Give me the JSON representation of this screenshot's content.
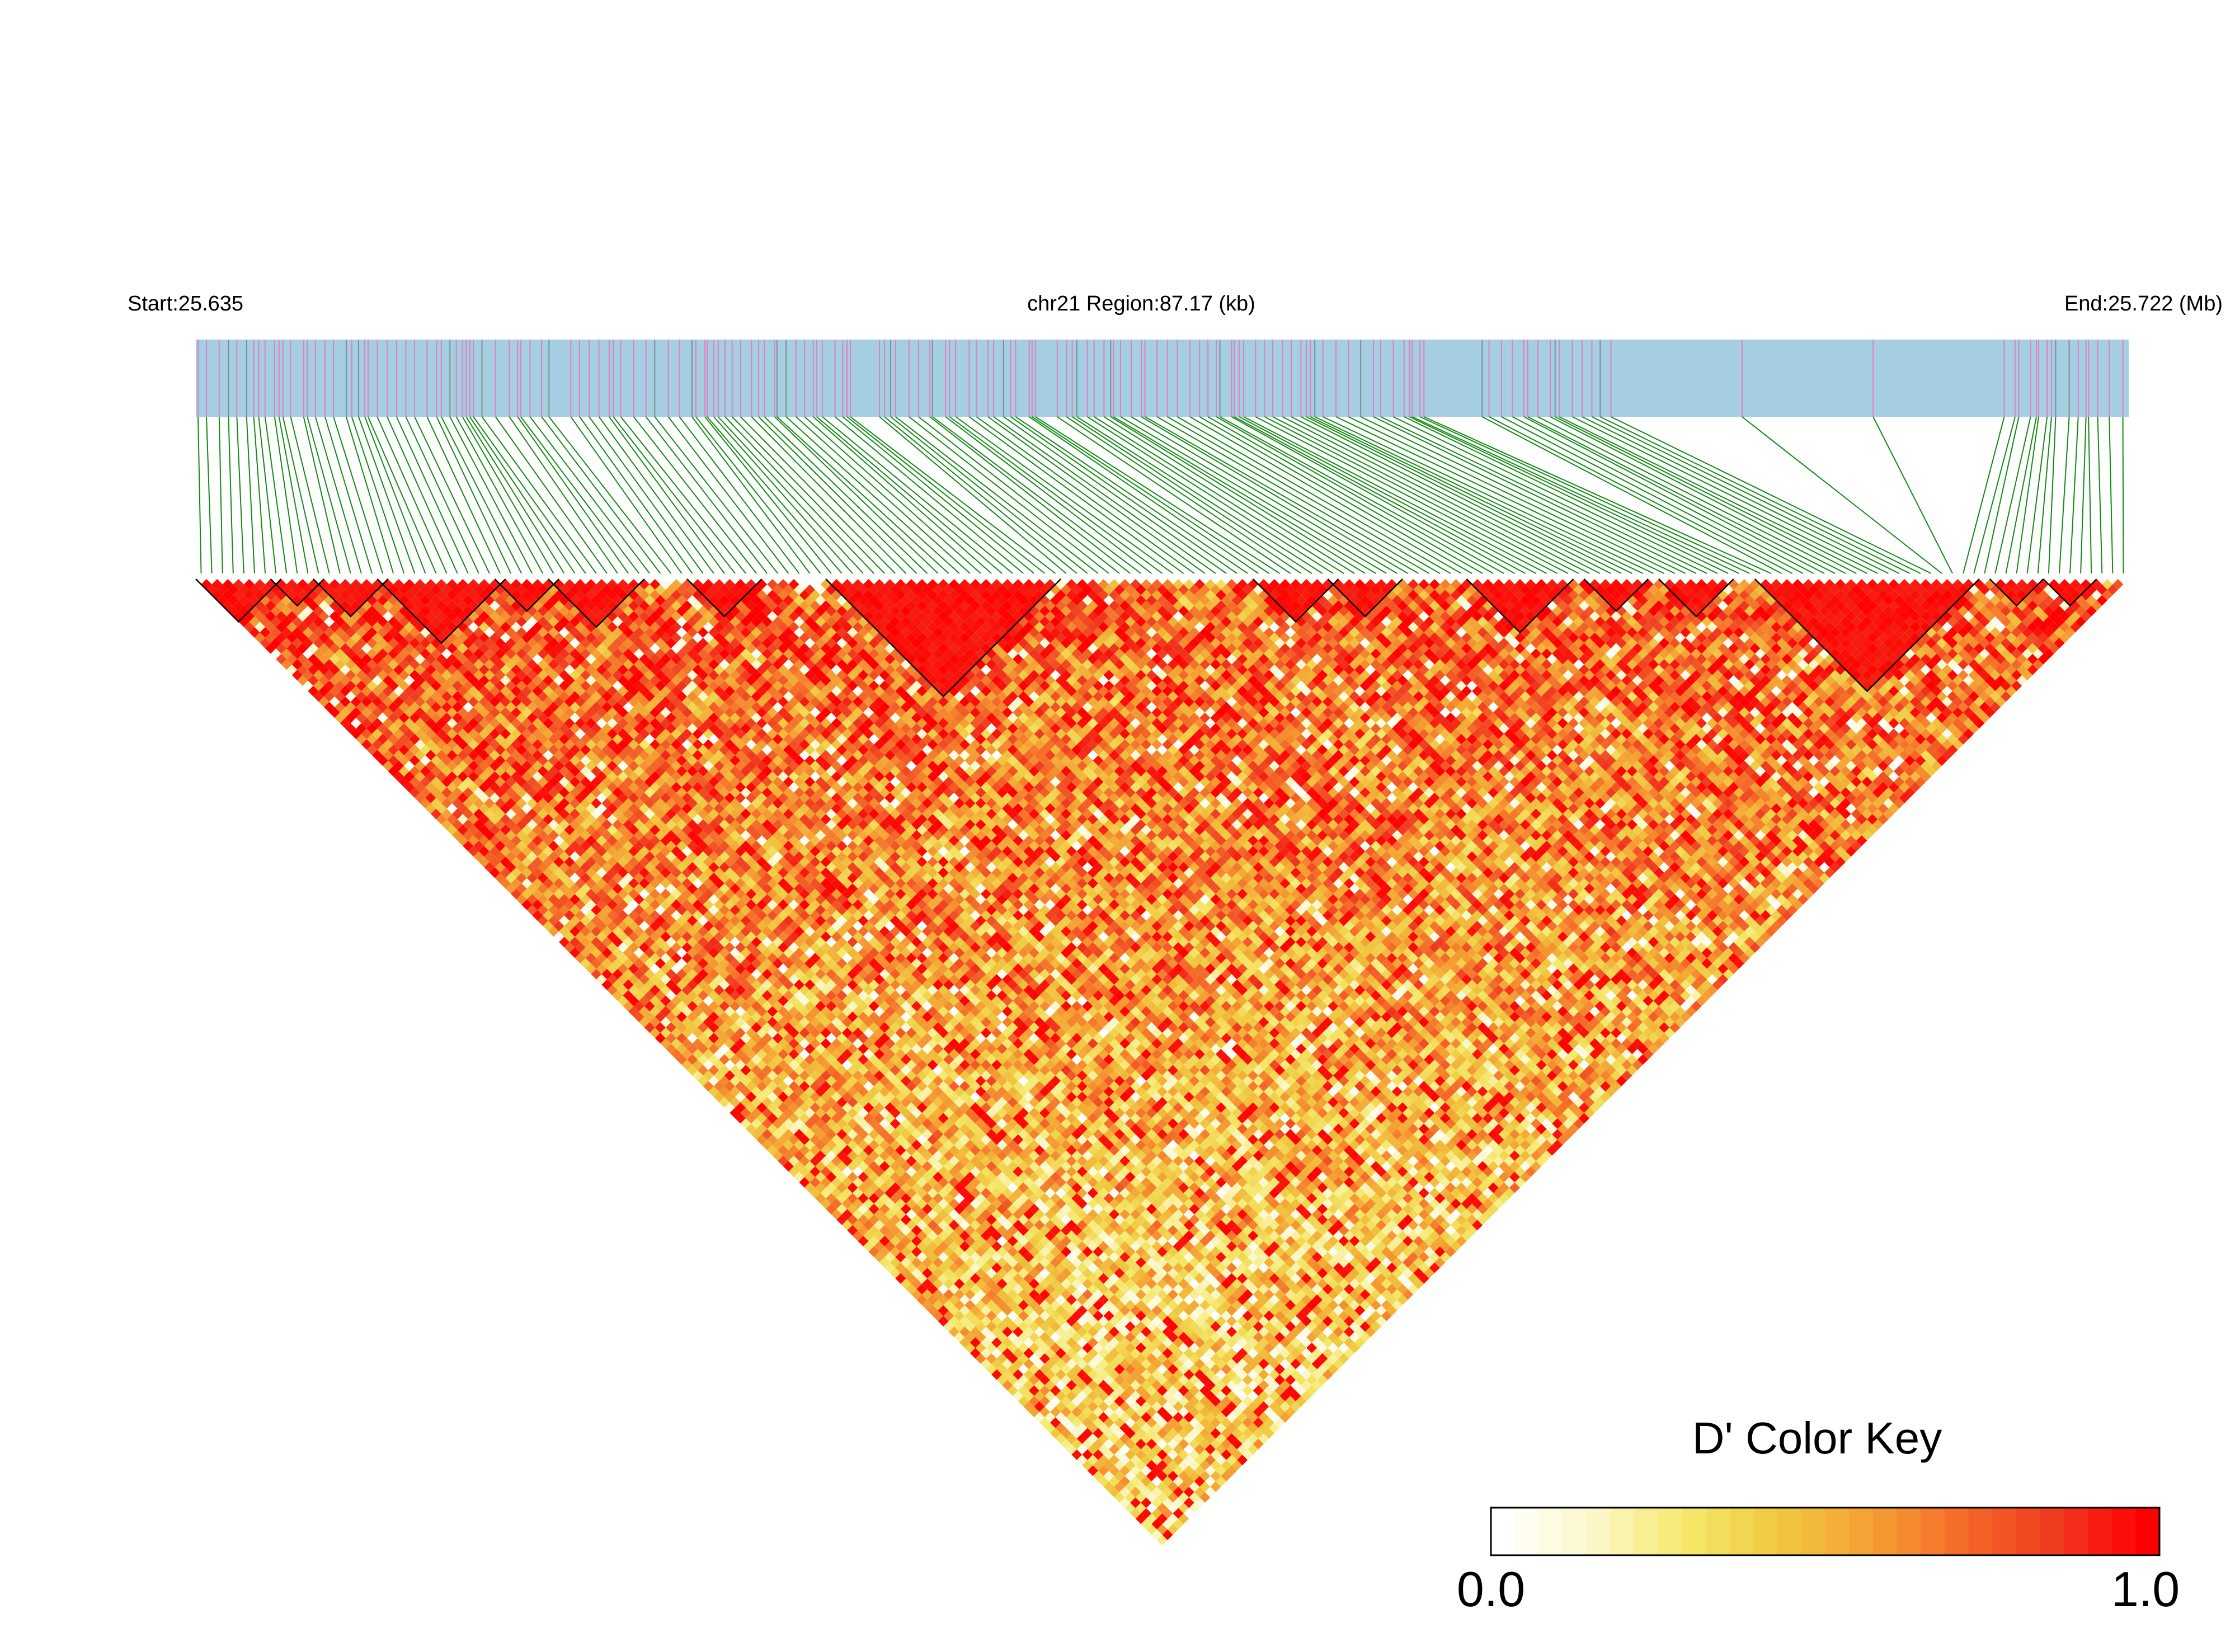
{
  "header": {
    "start_label": "Start:25.635",
    "region_label": "chr21 Region:87.17 (kb)",
    "end_label": "End:25.722 (Mb)"
  },
  "color_key": {
    "title": "D' Color Key",
    "min_label": "0.0",
    "max_label": "1.0",
    "colors": [
      "#ffffff",
      "#fbf7c8",
      "#f5e86a",
      "#f0c840",
      "#f5a033",
      "#f56a28",
      "#f03a20",
      "#ff0000"
    ]
  },
  "colors": {
    "track_fill": "#a6cee3",
    "snp_tick": "#df7fc0",
    "snp_tick_dark": "#7a8f8f",
    "connector": "#138a13",
    "block_outline": "#000000"
  },
  "chart_data": {
    "type": "heatmap",
    "title": "",
    "xlabel": "",
    "ylabel": "",
    "chromosome": "chr21",
    "region_start_mb": 25.635,
    "region_end_mb": 25.722,
    "region_size_kb": 87.17,
    "value_name": "D'",
    "value_range": [
      0,
      1
    ],
    "n_snps": 181,
    "ld_blocks": [
      [
        0,
        7
      ],
      [
        7,
        11
      ],
      [
        11,
        17
      ],
      [
        17,
        28
      ],
      [
        28,
        33
      ],
      [
        33,
        41
      ],
      [
        46,
        52
      ],
      [
        59,
        80
      ],
      [
        99,
        106
      ],
      [
        106,
        112
      ],
      [
        119,
        128
      ],
      [
        130,
        135
      ],
      [
        137,
        143
      ],
      [
        146,
        166
      ],
      [
        168,
        172
      ],
      [
        173,
        177
      ]
    ],
    "note_estimated": true
  }
}
